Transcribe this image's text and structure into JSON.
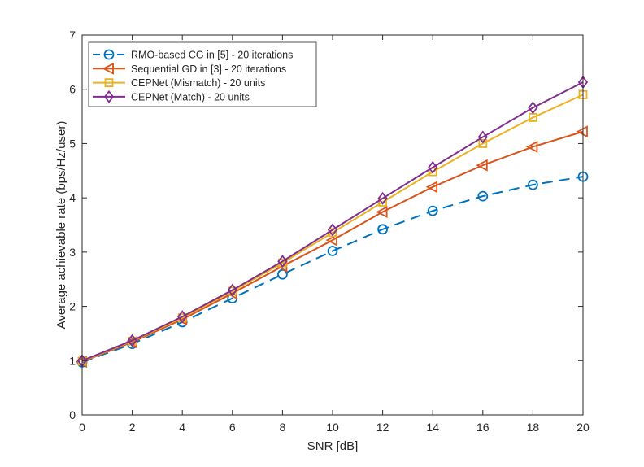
{
  "chart_data": {
    "type": "line",
    "title": "",
    "xlabel": "SNR [dB]",
    "ylabel": "Average achievable rate (bps/Hz/user)",
    "xlim": [
      0,
      20
    ],
    "ylim": [
      0,
      7
    ],
    "xticks": [
      0,
      2,
      4,
      6,
      8,
      10,
      12,
      14,
      16,
      18,
      20
    ],
    "yticks": [
      0,
      1,
      2,
      3,
      4,
      5,
      6,
      7
    ],
    "grid": false,
    "legend_position": "top-left",
    "x": [
      0,
      2,
      4,
      6,
      8,
      10,
      12,
      14,
      16,
      18,
      20
    ],
    "series": [
      {
        "name": "RMO-based CG in [5] - 20 iterations",
        "color": "#0072BD",
        "linestyle": "dashed",
        "marker": "circle",
        "values": [
          0.97,
          1.31,
          1.71,
          2.15,
          2.59,
          3.02,
          3.42,
          3.76,
          4.03,
          4.24,
          4.39
        ]
      },
      {
        "name": "Sequential GD in [3] - 20 iterations",
        "color": "#D95319",
        "linestyle": "solid",
        "marker": "triangle-left",
        "values": [
          0.98,
          1.34,
          1.76,
          2.24,
          2.74,
          3.22,
          3.74,
          4.2,
          4.6,
          4.94,
          5.22
        ]
      },
      {
        "name": "CEPNet (Mismatch) - 20 units",
        "color": "#EDB120",
        "linestyle": "solid",
        "marker": "square",
        "values": [
          0.99,
          1.36,
          1.79,
          2.28,
          2.8,
          3.36,
          3.92,
          4.48,
          5.0,
          5.48,
          5.9
        ]
      },
      {
        "name": "CEPNet (Match) - 20 units",
        "color": "#7E2F8E",
        "linestyle": "solid",
        "marker": "diamond",
        "values": [
          1.0,
          1.37,
          1.81,
          2.3,
          2.83,
          3.41,
          3.99,
          4.56,
          5.12,
          5.66,
          6.13
        ]
      }
    ]
  }
}
